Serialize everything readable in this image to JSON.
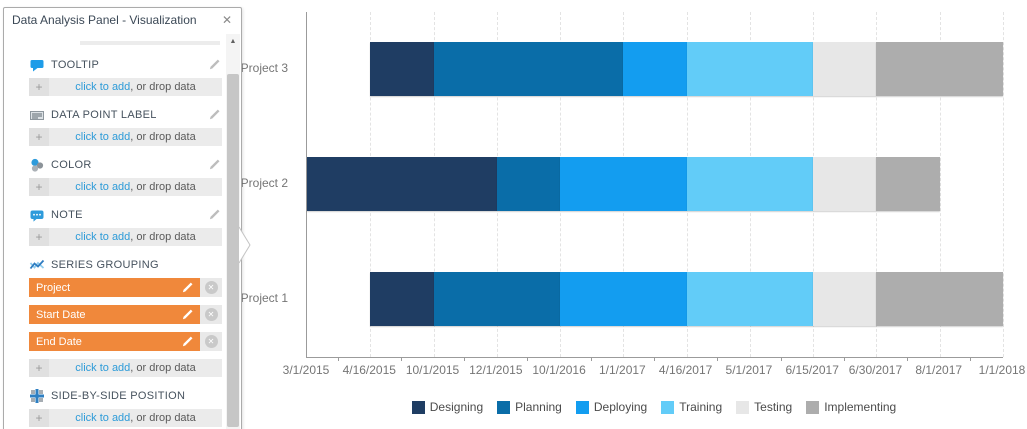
{
  "panel": {
    "title": "Data Analysis Panel - Visualization",
    "placeholder": {
      "link": "click to add",
      "rest": ", or drop data"
    },
    "sections": {
      "tooltip": {
        "label": "TOOLTIP",
        "icon": "tooltip-icon"
      },
      "data_point_label": {
        "label": "DATA POINT LABEL",
        "icon": "data-point-label-icon"
      },
      "color": {
        "label": "COLOR",
        "icon": "color-icon"
      },
      "note": {
        "label": "NOTE",
        "icon": "note-icon"
      },
      "series_grouping": {
        "label": "SERIES GROUPING",
        "icon": "series-grouping-icon",
        "chips": [
          {
            "label": "Project"
          },
          {
            "label": "Start Date"
          },
          {
            "label": "End Date"
          }
        ]
      },
      "side_by_side": {
        "label": "SIDE-BY-SIDE POSITION",
        "icon": "side-by-side-position-icon"
      }
    }
  },
  "icons": {
    "close": "✕",
    "plus": "+",
    "remove": "✕",
    "scroll_up": "▲"
  },
  "colors": {
    "accent_orange": "#F0883B",
    "link_blue": "#2D9BD8",
    "panel_row_bg": "#EBEBEB",
    "axis_text": "#757575"
  },
  "chart_data": {
    "type": "bar",
    "subtype": "horizontal-stacked-gantt",
    "title": "",
    "xlabel": "",
    "ylabel": "",
    "grid": "vertical-dashed",
    "legend_position": "bottom-center",
    "categories_x": [
      "3/1/2015",
      "4/16/2015",
      "10/1/2015",
      "12/1/2015",
      "10/1/2016",
      "1/1/2017",
      "4/16/2017",
      "5/1/2017",
      "6/15/2017",
      "6/30/2017",
      "8/1/2017",
      "1/1/2018"
    ],
    "rows": [
      {
        "name": "Project 3",
        "segments": [
          {
            "phase": "Designing",
            "start": "4/16/2015",
            "end": "10/1/2015"
          },
          {
            "phase": "Planning",
            "start": "10/1/2015",
            "end": "1/1/2017"
          },
          {
            "phase": "Deploying",
            "start": "1/1/2017",
            "end": "4/16/2017"
          },
          {
            "phase": "Training",
            "start": "4/16/2017",
            "end": "6/15/2017"
          },
          {
            "phase": "Testing",
            "start": "6/15/2017",
            "end": "6/30/2017"
          },
          {
            "phase": "Implementing",
            "start": "6/30/2017",
            "end": "1/1/2018"
          }
        ]
      },
      {
        "name": "Project 2",
        "segments": [
          {
            "phase": "Designing",
            "start": "3/1/2015",
            "end": "12/1/2015"
          },
          {
            "phase": "Planning",
            "start": "12/1/2015",
            "end": "10/1/2016"
          },
          {
            "phase": "Deploying",
            "start": "10/1/2016",
            "end": "4/16/2017"
          },
          {
            "phase": "Training",
            "start": "4/16/2017",
            "end": "6/15/2017"
          },
          {
            "phase": "Testing",
            "start": "6/15/2017",
            "end": "6/30/2017"
          },
          {
            "phase": "Implementing",
            "start": "6/30/2017",
            "end": "8/1/2017"
          }
        ]
      },
      {
        "name": "Project 1",
        "segments": [
          {
            "phase": "Designing",
            "start": "4/16/2015",
            "end": "10/1/2015"
          },
          {
            "phase": "Planning",
            "start": "10/1/2015",
            "end": "10/1/2016"
          },
          {
            "phase": "Deploying",
            "start": "10/1/2016",
            "end": "4/16/2017"
          },
          {
            "phase": "Training",
            "start": "4/16/2017",
            "end": "6/15/2017"
          },
          {
            "phase": "Testing",
            "start": "6/15/2017",
            "end": "6/30/2017"
          },
          {
            "phase": "Implementing",
            "start": "6/30/2017",
            "end": "1/1/2018"
          }
        ]
      }
    ],
    "legend": [
      {
        "label": "Designing",
        "color": "#1F3D63"
      },
      {
        "label": "Planning",
        "color": "#0A6DA8"
      },
      {
        "label": "Deploying",
        "color": "#139DF0"
      },
      {
        "label": "Training",
        "color": "#62CCF8"
      },
      {
        "label": "Testing",
        "color": "#E7E7E7"
      },
      {
        "label": "Implementing",
        "color": "#ADADAD"
      }
    ]
  }
}
